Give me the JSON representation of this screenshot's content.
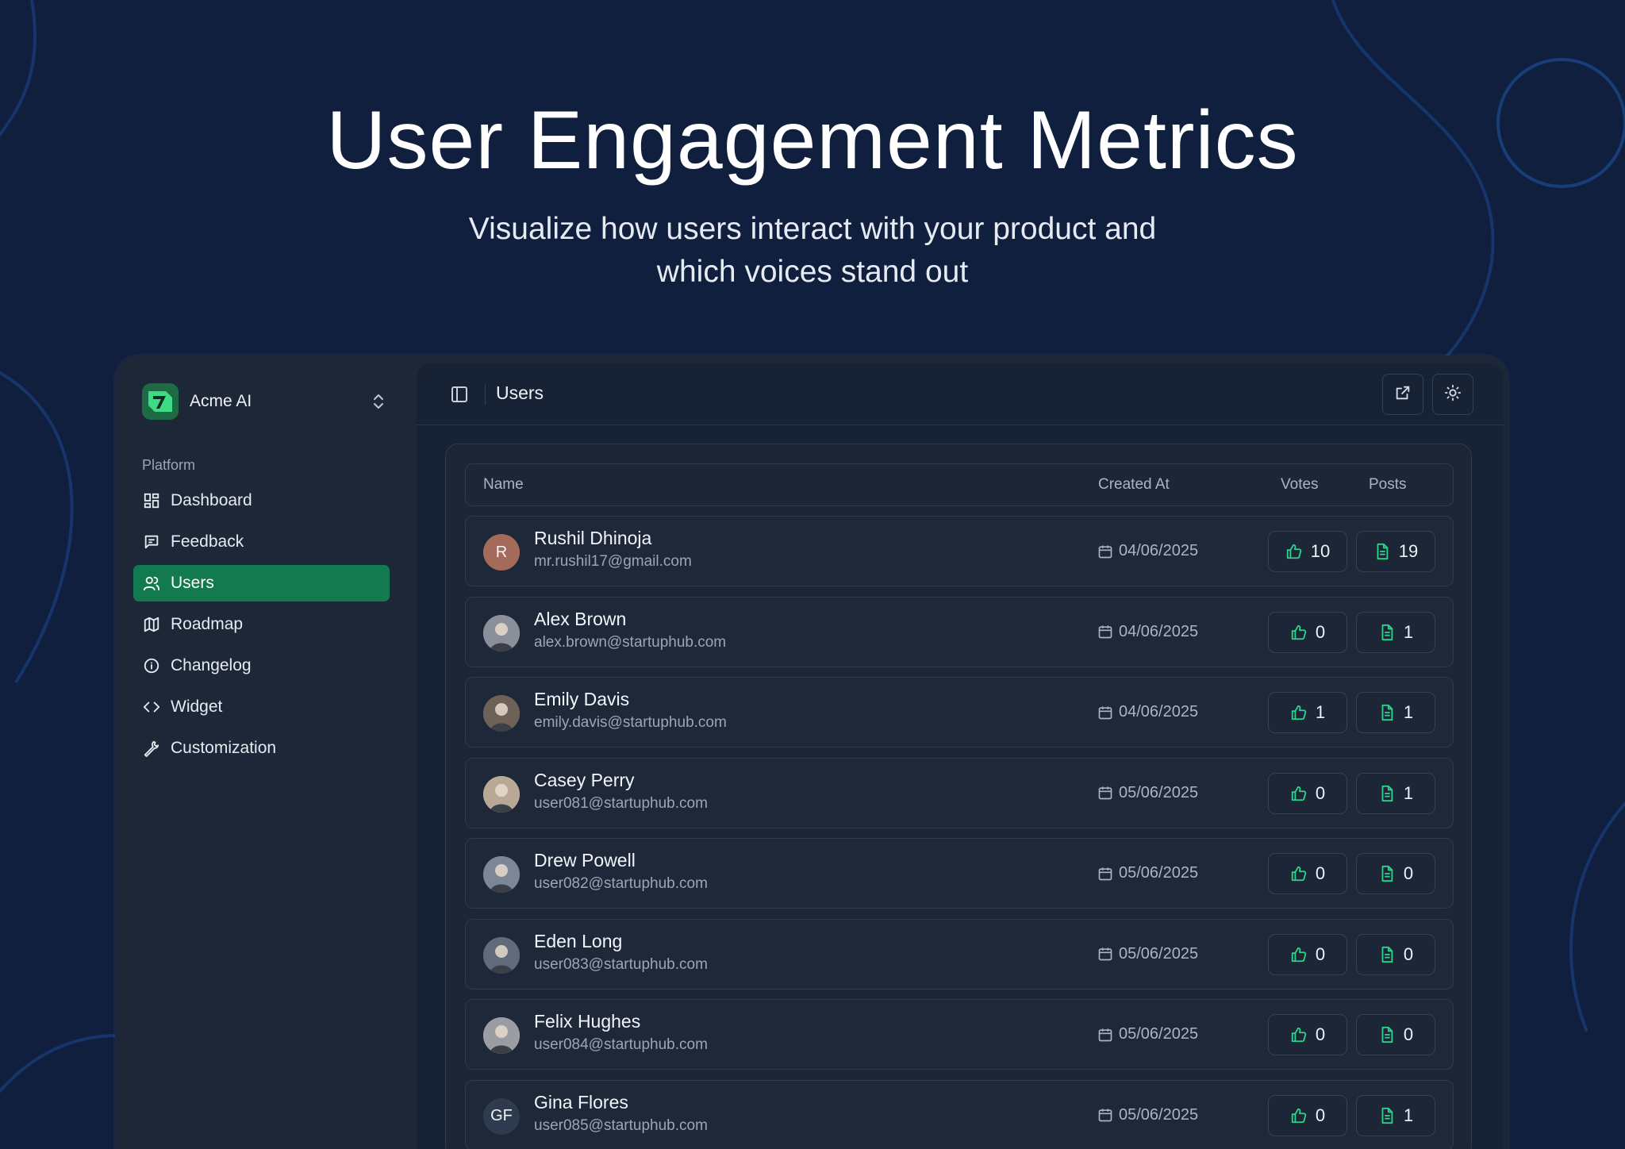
{
  "hero": {
    "title": "User Engagement Metrics",
    "subtitle_line1": "Visualize how users interact with your product and",
    "subtitle_line2": "which voices stand out"
  },
  "brand": {
    "name": "Acme AI"
  },
  "sidebar": {
    "group_label": "Platform",
    "items": [
      {
        "label": "Dashboard",
        "icon": "dashboard-icon",
        "active": false
      },
      {
        "label": "Feedback",
        "icon": "message-square-icon",
        "active": false
      },
      {
        "label": "Users",
        "icon": "users-icon",
        "active": true
      },
      {
        "label": "Roadmap",
        "icon": "map-icon",
        "active": false
      },
      {
        "label": "Changelog",
        "icon": "info-icon",
        "active": false
      },
      {
        "label": "Widget",
        "icon": "code-icon",
        "active": false
      },
      {
        "label": "Customization",
        "icon": "wrench-icon",
        "active": false
      }
    ]
  },
  "topbar": {
    "title": "Users"
  },
  "table": {
    "headers": {
      "name": "Name",
      "created": "Created At",
      "votes": "Votes",
      "posts": "Posts"
    },
    "rows": [
      {
        "name": "Rushil Dhinoja",
        "email": "mr.rushil17@gmail.com",
        "created": "04/06/2025",
        "votes": "10",
        "posts": "19",
        "avatar_initials": "R",
        "avatar_color": "#a56b5a"
      },
      {
        "name": "Alex Brown",
        "email": "alex.brown@startuphub.com",
        "created": "04/06/2025",
        "votes": "0",
        "posts": "1",
        "avatar_initials": "",
        "avatar_color": "#8a8f99"
      },
      {
        "name": "Emily Davis",
        "email": "emily.davis@startuphub.com",
        "created": "04/06/2025",
        "votes": "1",
        "posts": "1",
        "avatar_initials": "",
        "avatar_color": "#6e6258"
      },
      {
        "name": "Casey Perry",
        "email": "user081@startuphub.com",
        "created": "05/06/2025",
        "votes": "0",
        "posts": "1",
        "avatar_initials": "",
        "avatar_color": "#b9a896"
      },
      {
        "name": "Drew Powell",
        "email": "user082@startuphub.com",
        "created": "05/06/2025",
        "votes": "0",
        "posts": "0",
        "avatar_initials": "",
        "avatar_color": "#7b8796"
      },
      {
        "name": "Eden Long",
        "email": "user083@startuphub.com",
        "created": "05/06/2025",
        "votes": "0",
        "posts": "0",
        "avatar_initials": "",
        "avatar_color": "#5f6a7a"
      },
      {
        "name": "Felix Hughes",
        "email": "user084@startuphub.com",
        "created": "05/06/2025",
        "votes": "0",
        "posts": "0",
        "avatar_initials": "",
        "avatar_color": "#9a9da3"
      },
      {
        "name": "Gina Flores",
        "email": "user085@startuphub.com",
        "created": "05/06/2025",
        "votes": "0",
        "posts": "1",
        "avatar_initials": "GF",
        "avatar_color": "#2e3a4d"
      }
    ]
  },
  "colors": {
    "background": "#0f1f3d",
    "accent": "#137a4f",
    "icon_green": "#2fd28a"
  }
}
